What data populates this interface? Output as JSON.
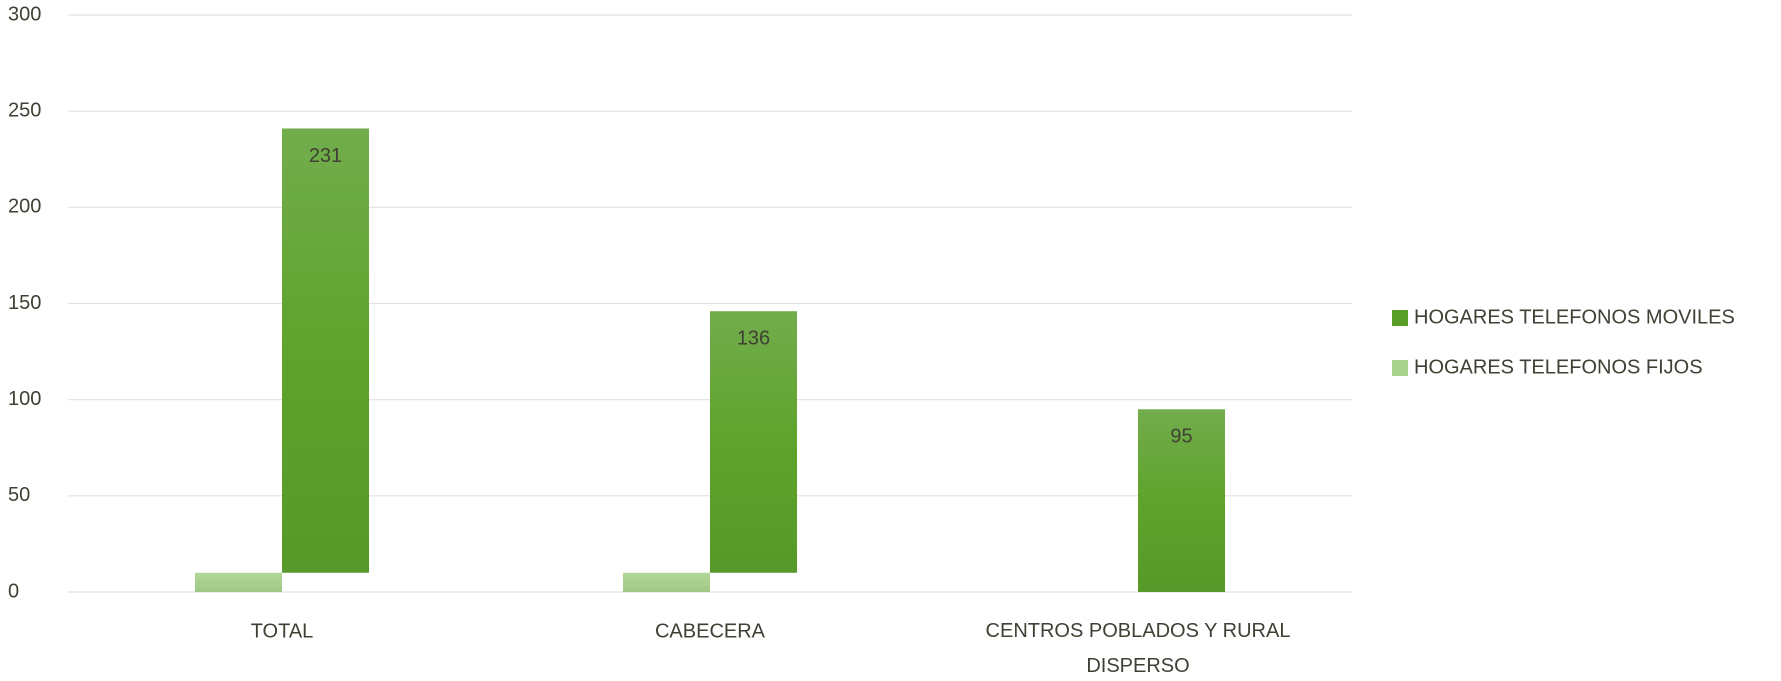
{
  "chart_data": {
    "type": "stacked_bar",
    "categories": [
      "TOTAL",
      "CABECERA",
      "CENTROS POBLADOS Y RURAL DISPERSO"
    ],
    "series": [
      {
        "name": "HOGARES TELEFONOS FIJOS",
        "color": "#a9d18e",
        "values": [
          10,
          10,
          0
        ]
      },
      {
        "name": "HOGARES TELEFONOS MOVILES",
        "color": "#5a9e2a",
        "values": [
          231,
          136,
          95
        ],
        "value_labels": [
          "231",
          "136",
          "95"
        ]
      }
    ],
    "ylim": [
      0,
      300
    ],
    "yticks": [
      0,
      50,
      100,
      150,
      200,
      250,
      300
    ],
    "grid": true,
    "legend": "right"
  }
}
